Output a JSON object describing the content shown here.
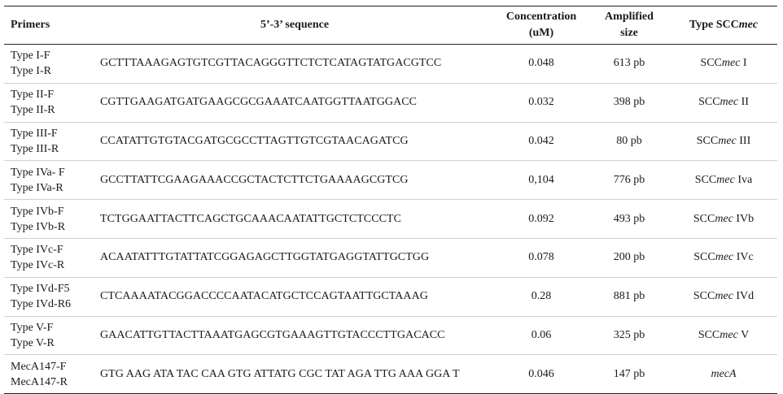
{
  "header": {
    "primers": "Primers",
    "sequence": "5’-3’ sequence",
    "concentration_line1": "Concentration",
    "concentration_line2": "(uM)",
    "size_line1": "Amplified",
    "size_line2": "size",
    "type_prefix": "Type SCC",
    "type_italic": "mec"
  },
  "rows": [
    {
      "primer_f": "Type I-F",
      "primer_r": "Type I-R",
      "sequence": "GCTTTAAAGAGTGTCGTTACAGGGTTCTCTCATAGTATGACGTCC",
      "concentration": "0.048",
      "size": "613 pb",
      "type_prefix": "SCC",
      "type_italic": "mec",
      "type_suffix": " I"
    },
    {
      "primer_f": "Type II-F",
      "primer_r": "Type II-R",
      "sequence": "CGTTGAAGATGATGAAGCGCGAAATCAATGGTTAATGGACC",
      "concentration": "0.032",
      "size": "398 pb",
      "type_prefix": "SCC",
      "type_italic": "mec",
      "type_suffix": " II"
    },
    {
      "primer_f": "Type III-F",
      "primer_r": "Type III-R",
      "sequence": "CCATATTGTGTACGATGCGCCTTAGTTGTCGTAACAGATCG",
      "concentration": "0.042",
      "size": "80 pb",
      "type_prefix": "SCC",
      "type_italic": "mec",
      "type_suffix": " III"
    },
    {
      "primer_f": "Type IVa- F",
      "primer_r": "Type IVa-R",
      "sequence": "GCCTTATTCGAAGAAACCGCTACTCTTCTGAAAAGCGTCG",
      "concentration": "0,104",
      "size": "776 pb",
      "type_prefix": "SCC",
      "type_italic": "mec",
      "type_suffix": " Iva"
    },
    {
      "primer_f": "Type IVb-F",
      "primer_r": "Type IVb-R",
      "sequence": "TCTGGAATTACTTCAGCTGCAAACAATATTGCTCTCCCTC",
      "concentration": "0.092",
      "size": "493 pb",
      "type_prefix": "SCC",
      "type_italic": "mec",
      "type_suffix": " IVb"
    },
    {
      "primer_f": "Type IVc-F",
      "primer_r": "Type IVc-R",
      "sequence": "ACAATATTTGTATTATCGGAGAGCTTGGTATGAGGTATTGCTGG",
      "concentration": "0.078",
      "size": "200 pb",
      "type_prefix": "SCC",
      "type_italic": "mec",
      "type_suffix": " IVc"
    },
    {
      "primer_f": "Type IVd-F5",
      "primer_r": "Type IVd-R6",
      "sequence": "CTCAAAATACGGACCCCAATACATGCTCCAGTAATTGCTAAAG",
      "concentration": "0.28",
      "size": "881 pb",
      "type_prefix": "SCC",
      "type_italic": "mec",
      "type_suffix": " IVd"
    },
    {
      "primer_f": "Type V-F",
      "primer_r": "Type V-R",
      "sequence": "GAACATTGTTACTTAAATGAGCGTGAAAGTTGTACCCTTGACACC",
      "concentration": "0.06",
      "size": "325 pb",
      "type_prefix": "SCC",
      "type_italic": "mec",
      "type_suffix": " V"
    },
    {
      "primer_f": "MecA147-F",
      "primer_r": "MecA147-R",
      "sequence": "GTG AAG ATA TAC CAA GTG ATTATG CGC TAT AGA TTG AAA GGA T",
      "concentration": "0.046",
      "size": "147 pb",
      "type_prefix": "",
      "type_italic": "mecA",
      "type_suffix": ""
    }
  ]
}
